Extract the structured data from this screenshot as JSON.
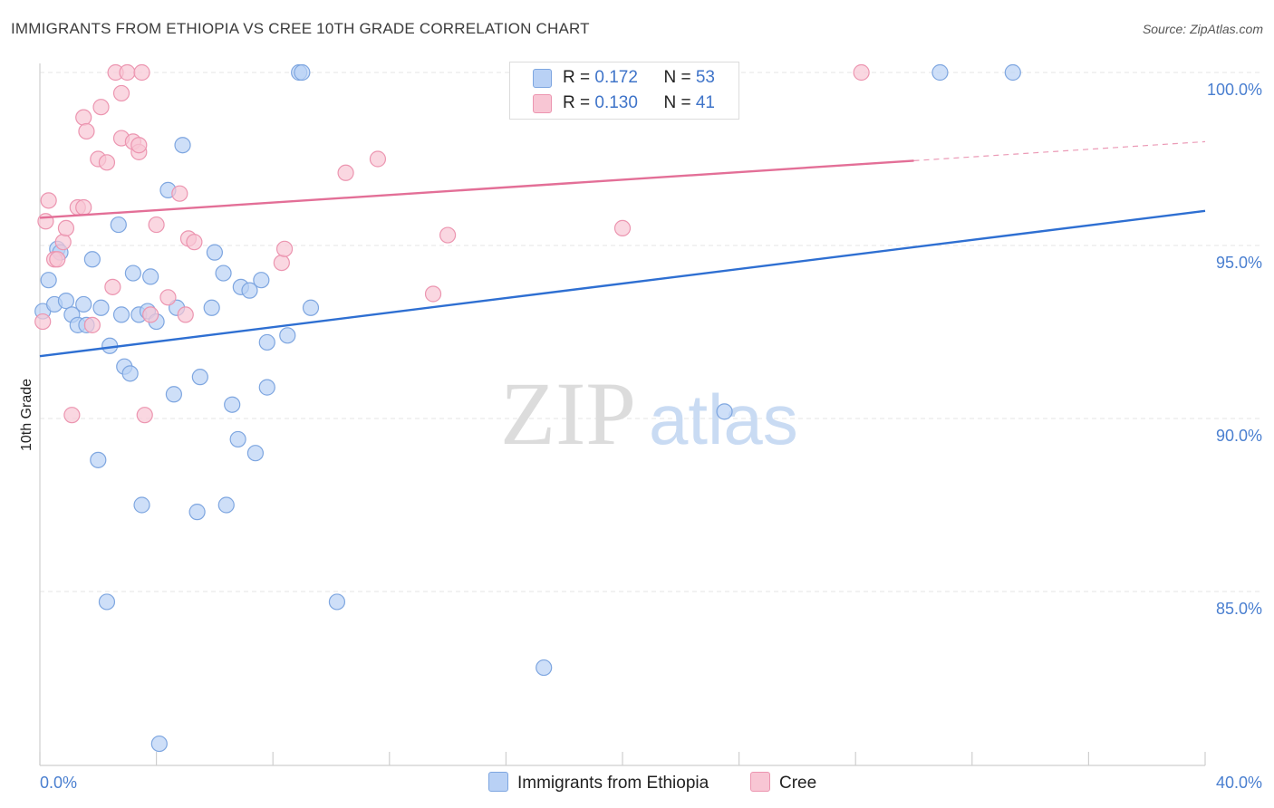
{
  "title": "IMMIGRANTS FROM ETHIOPIA VS CREE 10TH GRADE CORRELATION CHART",
  "source": "Source: ZipAtlas.com",
  "watermark": {
    "zip": "ZIP",
    "atlas": "atlas"
  },
  "colors": {
    "blue_fill": "#b9d1f5",
    "blue_stroke": "#7ea6e0",
    "blue_line": "#2e6fd2",
    "pink_fill": "#f8c6d4",
    "pink_stroke": "#ec95b0",
    "pink_line": "#e36f97",
    "grid": "#e6e6e6",
    "tick_label": "#4a7fd0"
  },
  "legend": {
    "rows": [
      {
        "r_label": "R = ",
        "r_value": "0.172",
        "n_label": "N = ",
        "n_value": "53"
      },
      {
        "r_label": "R = ",
        "r_value": "0.130",
        "n_label": "N = ",
        "n_value": "41"
      }
    ]
  },
  "bottom_legend": [
    "Immigrants from Ethiopia",
    "Cree"
  ],
  "chart_data": {
    "type": "scatter",
    "xlabel": "",
    "ylabel": "10th Grade",
    "xlim": [
      0,
      40
    ],
    "ylim": [
      80.5,
      100.2
    ],
    "x_tick_labels": [
      "0.0%",
      "40.0%"
    ],
    "y_ticks": [
      85,
      90,
      95,
      100
    ],
    "y_tick_labels": [
      "85.0%",
      "90.0%",
      "95.0%",
      "100.0%"
    ],
    "series": [
      {
        "name": "Immigrants from Ethiopia",
        "R": 0.172,
        "N": 53,
        "trend": {
          "x0": 0,
          "y0": 91.8,
          "x1": 40,
          "y1": 96.0
        },
        "points": [
          [
            0.1,
            93.1
          ],
          [
            0.3,
            94.0
          ],
          [
            0.5,
            93.3
          ],
          [
            0.6,
            94.9
          ],
          [
            0.7,
            94.8
          ],
          [
            0.9,
            93.4
          ],
          [
            1.1,
            93.0
          ],
          [
            1.3,
            92.7
          ],
          [
            1.5,
            93.3
          ],
          [
            1.6,
            92.7
          ],
          [
            1.8,
            94.6
          ],
          [
            2.0,
            88.8
          ],
          [
            2.1,
            93.2
          ],
          [
            2.3,
            84.7
          ],
          [
            2.4,
            92.1
          ],
          [
            2.7,
            95.6
          ],
          [
            2.8,
            93.0
          ],
          [
            2.9,
            91.5
          ],
          [
            3.1,
            91.3
          ],
          [
            3.2,
            94.2
          ],
          [
            3.4,
            93.0
          ],
          [
            3.5,
            87.5
          ],
          [
            3.7,
            93.1
          ],
          [
            3.8,
            94.1
          ],
          [
            4.0,
            92.8
          ],
          [
            4.1,
            80.6
          ],
          [
            4.4,
            96.6
          ],
          [
            4.6,
            90.7
          ],
          [
            4.7,
            93.2
          ],
          [
            4.9,
            97.9
          ],
          [
            5.4,
            87.3
          ],
          [
            5.5,
            91.2
          ],
          [
            5.9,
            93.2
          ],
          [
            6.0,
            94.8
          ],
          [
            6.3,
            94.2
          ],
          [
            6.4,
            87.5
          ],
          [
            6.6,
            90.4
          ],
          [
            6.8,
            89.4
          ],
          [
            6.9,
            93.8
          ],
          [
            7.2,
            93.7
          ],
          [
            7.4,
            89.0
          ],
          [
            7.6,
            94.0
          ],
          [
            7.8,
            92.2
          ],
          [
            7.8,
            90.9
          ],
          [
            8.5,
            92.4
          ],
          [
            8.9,
            100.0
          ],
          [
            9.0,
            100.0
          ],
          [
            9.3,
            93.2
          ],
          [
            10.2,
            84.7
          ],
          [
            17.3,
            82.8
          ],
          [
            23.5,
            90.2
          ],
          [
            30.9,
            100.0
          ],
          [
            33.4,
            100.0
          ]
        ]
      },
      {
        "name": "Cree",
        "R": 0.13,
        "N": 41,
        "trend": {
          "x0": 0,
          "y0": 95.8,
          "x1": 30,
          "y1": 97.45,
          "dash_x1": 40,
          "dash_y1": 98.0
        },
        "points": [
          [
            0.1,
            92.8
          ],
          [
            0.2,
            95.7
          ],
          [
            0.3,
            96.3
          ],
          [
            0.5,
            94.6
          ],
          [
            0.6,
            94.6
          ],
          [
            0.8,
            95.1
          ],
          [
            0.9,
            95.5
          ],
          [
            1.1,
            90.1
          ],
          [
            1.3,
            96.1
          ],
          [
            1.5,
            96.1
          ],
          [
            1.5,
            98.7
          ],
          [
            1.6,
            98.3
          ],
          [
            1.8,
            92.7
          ],
          [
            2.0,
            97.5
          ],
          [
            2.1,
            99.0
          ],
          [
            2.3,
            97.4
          ],
          [
            2.5,
            93.8
          ],
          [
            2.6,
            100.0
          ],
          [
            2.8,
            98.1
          ],
          [
            2.8,
            99.4
          ],
          [
            3.0,
            100.0
          ],
          [
            3.2,
            98.0
          ],
          [
            3.4,
            97.7
          ],
          [
            3.4,
            97.9
          ],
          [
            3.5,
            100.0
          ],
          [
            3.6,
            90.1
          ],
          [
            3.8,
            93.0
          ],
          [
            4.0,
            95.6
          ],
          [
            4.4,
            93.5
          ],
          [
            4.8,
            96.5
          ],
          [
            5.0,
            93.0
          ],
          [
            5.1,
            95.2
          ],
          [
            5.3,
            95.1
          ],
          [
            8.3,
            94.5
          ],
          [
            8.4,
            94.9
          ],
          [
            10.5,
            97.1
          ],
          [
            11.6,
            97.5
          ],
          [
            13.5,
            93.6
          ],
          [
            14.0,
            95.3
          ],
          [
            20.0,
            95.5
          ],
          [
            28.2,
            100.0
          ]
        ]
      }
    ]
  }
}
